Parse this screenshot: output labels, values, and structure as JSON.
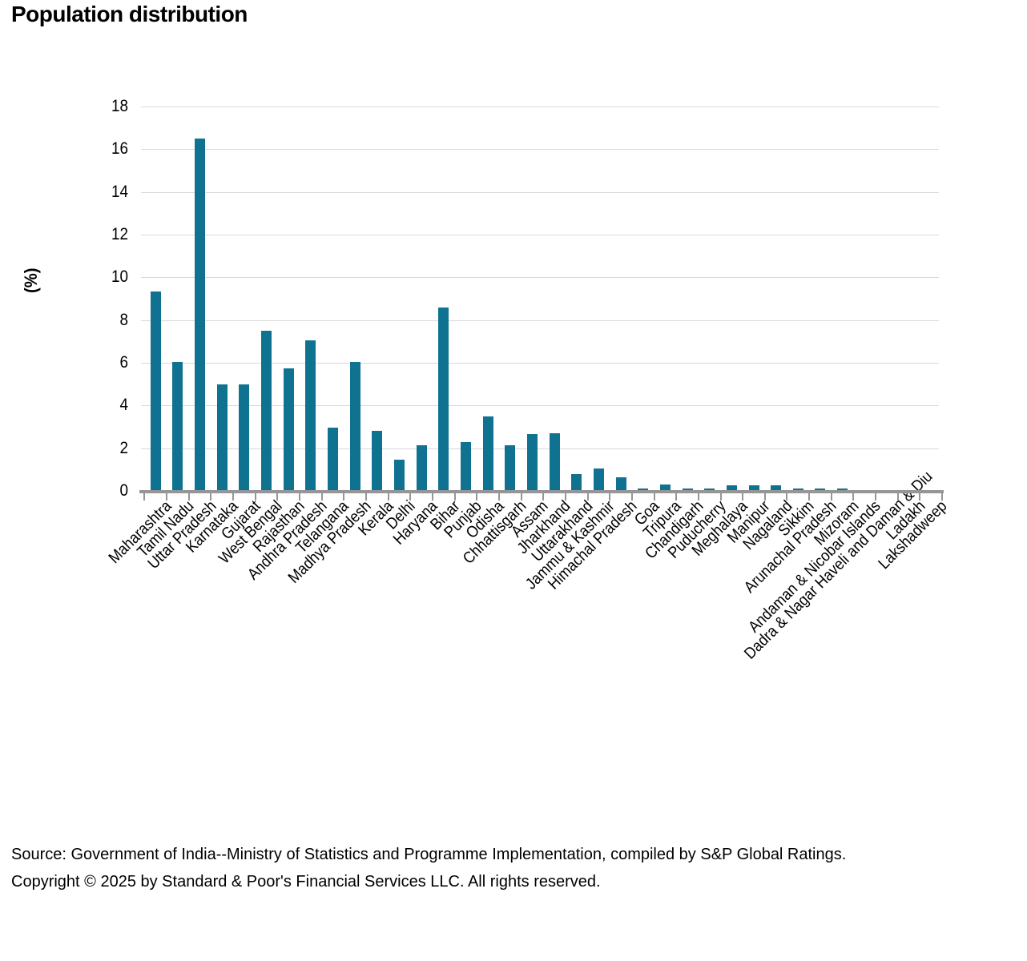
{
  "chart_data": {
    "type": "bar",
    "title": "Population distribution",
    "ylabel": "(%)",
    "xlabel": "",
    "ylim": [
      0,
      18
    ],
    "ytick_step": 2,
    "grid": "horizontal",
    "legend": "none",
    "bar_color": "#0F7290",
    "gridline_color": "#d9d9d9",
    "axis_color": "#969696",
    "categories": [
      "Maharashtra",
      "Tamil Nadu",
      "Uttar Pradesh",
      "Karnataka",
      "Gujarat",
      "West Bengal",
      "Rajasthan",
      "Andhra Pradesh",
      "Telangana",
      "Madhya Pradesh",
      "Kerala",
      "Delhi",
      "Haryana",
      "Bihar",
      "Punjab",
      "Odisha",
      "Chhattisgarh",
      "Assam",
      "Jharkhand",
      "Uttarakhand",
      "Jammu & Kashmir",
      "Himachal Pradesh",
      "Goa",
      "Tripura",
      "Chandigarh",
      "Puducherry",
      "Meghalaya",
      "Manipur",
      "Nagaland",
      "Sikkim",
      "Arunachal Pradesh",
      "Mizoram",
      "Andaman & Nicobar Islands",
      "Dadra & Nagar Haveli and Daman & Diu",
      "Ladakh",
      "Lakshadweep"
    ],
    "values": [
      9.35,
      6.05,
      16.5,
      5.0,
      5.0,
      7.5,
      5.75,
      7.05,
      2.95,
      6.05,
      2.8,
      1.45,
      2.15,
      8.6,
      2.3,
      3.5,
      2.15,
      2.65,
      2.7,
      0.8,
      1.05,
      0.65,
      0.1,
      0.3,
      0.1,
      0.1,
      0.25,
      0.25,
      0.25,
      0.1,
      0.1,
      0.1,
      0.05,
      0.05,
      0.02,
      0.01
    ]
  },
  "footer": {
    "source": "Source: Government of India--Ministry of Statistics and Programme Implementation, compiled by S&P Global Ratings.",
    "copyright": "Copyright © 2025 by Standard & Poor's Financial Services LLC. All rights reserved."
  }
}
